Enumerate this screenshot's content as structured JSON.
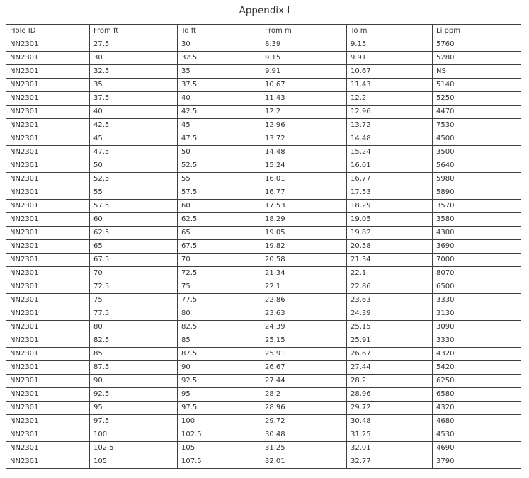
{
  "title": "Appendix I",
  "table": {
    "columns": [
      "Hole ID",
      "From ft",
      "To ft",
      "From m",
      "To m",
      "Li ppm"
    ],
    "rows": [
      [
        "NN2301",
        "27.5",
        "30",
        "8.39",
        "9.15",
        "5760"
      ],
      [
        "NN2301",
        "30",
        "32.5",
        "9.15",
        "9.91",
        "5280"
      ],
      [
        "NN2301",
        "32.5",
        "35",
        "9.91",
        "10.67",
        "NS"
      ],
      [
        "NN2301",
        "35",
        "37.5",
        "10.67",
        "11.43",
        "5140"
      ],
      [
        "NN2301",
        "37.5",
        "40",
        "11.43",
        "12.2",
        "5250"
      ],
      [
        "NN2301",
        "40",
        "42.5",
        "12.2",
        "12.96",
        "4470"
      ],
      [
        "NN2301",
        "42.5",
        "45",
        "12.96",
        "13.72",
        "7530"
      ],
      [
        "NN2301",
        "45",
        "47.5",
        "13.72",
        "14.48",
        "4500"
      ],
      [
        "NN2301",
        "47.5",
        "50",
        "14.48",
        "15.24",
        "3500"
      ],
      [
        "NN2301",
        "50",
        "52.5",
        "15.24",
        "16.01",
        "5640"
      ],
      [
        "NN2301",
        "52.5",
        "55",
        "16.01",
        "16.77",
        "5980"
      ],
      [
        "NN2301",
        "55",
        "57.5",
        "16.77",
        "17.53",
        "5890"
      ],
      [
        "NN2301",
        "57.5",
        "60",
        "17.53",
        "18.29",
        "3570"
      ],
      [
        "NN2301",
        "60",
        "62.5",
        "18.29",
        "19.05",
        "3580"
      ],
      [
        "NN2301",
        "62.5",
        "65",
        "19.05",
        "19.82",
        "4300"
      ],
      [
        "NN2301",
        "65",
        "67.5",
        "19.82",
        "20.58",
        "3690"
      ],
      [
        "NN2301",
        "67.5",
        "70",
        "20.58",
        "21.34",
        "7000"
      ],
      [
        "NN2301",
        "70",
        "72.5",
        "21.34",
        "22.1",
        "8070"
      ],
      [
        "NN2301",
        "72.5",
        "75",
        "22.1",
        "22.86",
        "6500"
      ],
      [
        "NN2301",
        "75",
        "77.5",
        "22.86",
        "23.63",
        "3330"
      ],
      [
        "NN2301",
        "77.5",
        "80",
        "23.63",
        "24.39",
        "3130"
      ],
      [
        "NN2301",
        "80",
        "82.5",
        "24.39",
        "25.15",
        "3090"
      ],
      [
        "NN2301",
        "82.5",
        "85",
        "25.15",
        "25.91",
        "3330"
      ],
      [
        "NN2301",
        "85",
        "87.5",
        "25.91",
        "26.67",
        "4320"
      ],
      [
        "NN2301",
        "87.5",
        "90",
        "26.67",
        "27.44",
        "5420"
      ],
      [
        "NN2301",
        "90",
        "92.5",
        "27.44",
        "28.2",
        "6250"
      ],
      [
        "NN2301",
        "92.5",
        "95",
        "28.2",
        "28.96",
        "6580"
      ],
      [
        "NN2301",
        "95",
        "97.5",
        "28.96",
        "29.72",
        "4320"
      ],
      [
        "NN2301",
        "97.5",
        "100",
        "29.72",
        "30.48",
        "4680"
      ],
      [
        "NN2301",
        "100",
        "102.5",
        "30.48",
        "31.25",
        "4530"
      ],
      [
        "NN2301",
        "102.5",
        "105",
        "31.25",
        "32.01",
        "4690"
      ],
      [
        "NN2301",
        "105",
        "107.5",
        "32.01",
        "32.77",
        "3790"
      ]
    ]
  }
}
